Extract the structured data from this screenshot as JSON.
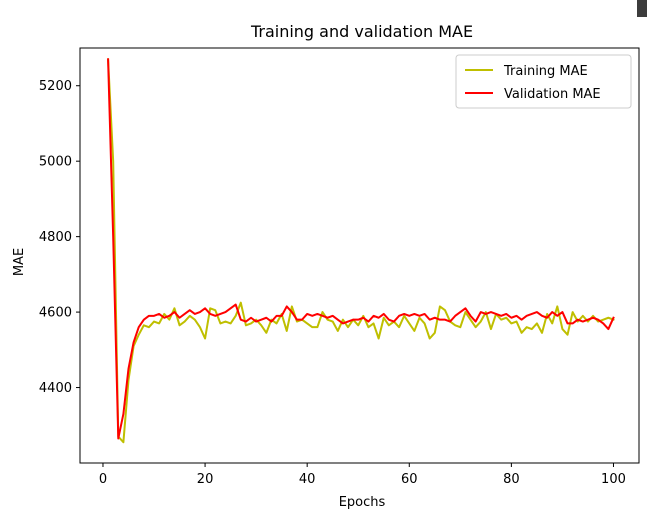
{
  "chart_data": {
    "type": "line",
    "title": "Training and validation MAE",
    "xlabel": "Epochs",
    "ylabel": "MAE",
    "xlim": [
      -4.5,
      105
    ],
    "ylim": [
      4200,
      5300
    ],
    "xticks": [
      0,
      20,
      40,
      60,
      80,
      100
    ],
    "yticks": [
      4400,
      4600,
      4800,
      5000,
      5200
    ],
    "grid": false,
    "legend_position": "top-right",
    "series": [
      {
        "name": "Training MAE",
        "color": "#bfbf00",
        "x": [
          1,
          2,
          3,
          4,
          5,
          6,
          7,
          8,
          9,
          10,
          11,
          12,
          13,
          14,
          15,
          16,
          17,
          18,
          19,
          20,
          21,
          22,
          23,
          24,
          25,
          26,
          27,
          28,
          29,
          30,
          31,
          32,
          33,
          34,
          35,
          36,
          37,
          38,
          39,
          40,
          41,
          42,
          43,
          44,
          45,
          46,
          47,
          48,
          49,
          50,
          51,
          52,
          53,
          54,
          55,
          56,
          57,
          58,
          59,
          60,
          61,
          62,
          63,
          64,
          65,
          66,
          67,
          68,
          69,
          70,
          71,
          72,
          73,
          74,
          75,
          76,
          77,
          78,
          79,
          80,
          81,
          82,
          83,
          84,
          85,
          86,
          87,
          88,
          89,
          90,
          91,
          92,
          93,
          94,
          95,
          96,
          97,
          98,
          99,
          100
        ],
        "values": [
          5270,
          5000,
          4270,
          4255,
          4420,
          4510,
          4540,
          4565,
          4560,
          4575,
          4570,
          4595,
          4580,
          4610,
          4565,
          4575,
          4590,
          4580,
          4560,
          4530,
          4610,
          4605,
          4570,
          4575,
          4570,
          4590,
          4625,
          4565,
          4570,
          4580,
          4565,
          4545,
          4580,
          4570,
          4595,
          4550,
          4615,
          4575,
          4580,
          4570,
          4560,
          4560,
          4600,
          4580,
          4575,
          4550,
          4580,
          4560,
          4580,
          4565,
          4590,
          4560,
          4570,
          4530,
          4585,
          4565,
          4575,
          4560,
          4590,
          4570,
          4550,
          4585,
          4570,
          4530,
          4545,
          4615,
          4605,
          4575,
          4565,
          4560,
          4600,
          4580,
          4560,
          4575,
          4600,
          4555,
          4595,
          4580,
          4585,
          4570,
          4575,
          4545,
          4560,
          4555,
          4570,
          4545,
          4595,
          4570,
          4615,
          4555,
          4540,
          4600,
          4575,
          4590,
          4575,
          4590,
          4575,
          4580,
          4585,
          4580
        ]
      },
      {
        "name": "Validation MAE",
        "color": "#ff0000",
        "x": [
          1,
          2,
          3,
          4,
          5,
          6,
          7,
          8,
          9,
          10,
          11,
          12,
          13,
          14,
          15,
          16,
          17,
          18,
          19,
          20,
          21,
          22,
          23,
          24,
          25,
          26,
          27,
          28,
          29,
          30,
          31,
          32,
          33,
          34,
          35,
          36,
          37,
          38,
          39,
          40,
          41,
          42,
          43,
          44,
          45,
          46,
          47,
          48,
          49,
          50,
          51,
          52,
          53,
          54,
          55,
          56,
          57,
          58,
          59,
          60,
          61,
          62,
          63,
          64,
          65,
          66,
          67,
          68,
          69,
          70,
          71,
          72,
          73,
          74,
          75,
          76,
          77,
          78,
          79,
          80,
          81,
          82,
          83,
          84,
          85,
          86,
          87,
          88,
          89,
          90,
          91,
          92,
          93,
          94,
          95,
          96,
          97,
          98,
          99,
          100
        ],
        "values": [
          5270,
          4800,
          4265,
          4330,
          4450,
          4520,
          4560,
          4580,
          4590,
          4590,
          4595,
          4585,
          4590,
          4600,
          4585,
          4595,
          4605,
          4595,
          4600,
          4610,
          4595,
          4590,
          4595,
          4600,
          4610,
          4620,
          4580,
          4575,
          4585,
          4575,
          4580,
          4585,
          4575,
          4590,
          4590,
          4615,
          4600,
          4580,
          4580,
          4595,
          4590,
          4595,
          4590,
          4585,
          4590,
          4580,
          4570,
          4575,
          4580,
          4580,
          4585,
          4575,
          4590,
          4585,
          4595,
          4580,
          4575,
          4590,
          4595,
          4590,
          4595,
          4590,
          4595,
          4580,
          4585,
          4580,
          4580,
          4575,
          4590,
          4600,
          4610,
          4590,
          4575,
          4600,
          4595,
          4600,
          4595,
          4590,
          4595,
          4585,
          4590,
          4580,
          4590,
          4595,
          4600,
          4590,
          4585,
          4600,
          4590,
          4600,
          4570,
          4570,
          4580,
          4575,
          4580,
          4585,
          4580,
          4570,
          4555,
          4585
        ]
      }
    ]
  },
  "colors": {
    "training": "#bfbf00",
    "validation": "#ff0000",
    "corner_block": "#3c3c3c"
  }
}
